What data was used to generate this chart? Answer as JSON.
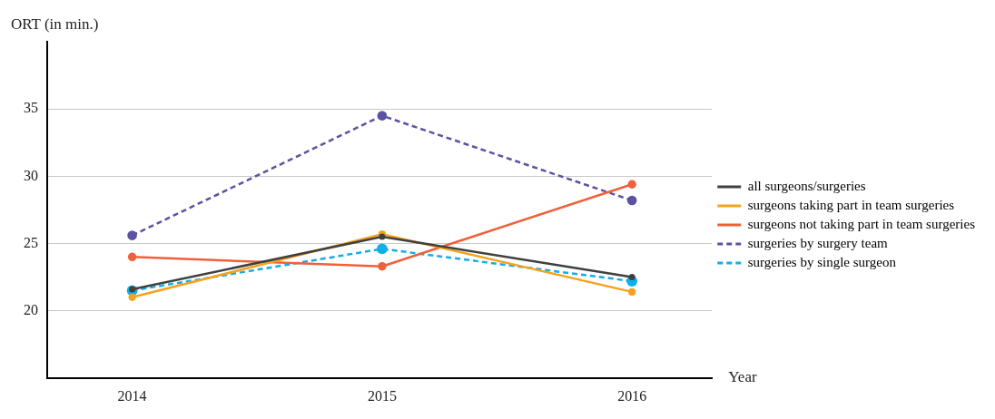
{
  "chart_data": {
    "type": "line",
    "xlabel": "Year",
    "ylabel": "ORT (in min.)",
    "x": [
      2014,
      2015,
      2016
    ],
    "xlim": [
      2013.66,
      2016.32
    ],
    "xticks": [
      2014,
      2015,
      2016
    ],
    "ylim": [
      15,
      40
    ],
    "yticks": [
      20,
      25,
      30,
      35
    ],
    "grid": "y",
    "legend": "right",
    "marker": "circle",
    "series": [
      {
        "name": "all surgeons/surgeries",
        "color": "#404040",
        "line_style": "solid",
        "values": [
          21.6,
          25.5,
          22.5
        ]
      },
      {
        "name": "surgeons taking part in team surgeries",
        "color": "#f5a21e",
        "line_style": "solid",
        "values": [
          21.0,
          25.7,
          21.4
        ]
      },
      {
        "name": "surgeons not taking part in team surgeries",
        "color": "#f0603a",
        "line_style": "solid",
        "values": [
          24.0,
          23.3,
          29.4
        ]
      },
      {
        "name": "surgeries by surgery team",
        "color": "#5b52a3",
        "line_style": "dashed",
        "values": [
          25.6,
          34.5,
          28.2
        ]
      },
      {
        "name": "surgeries by single surgeon",
        "color": "#12aee8",
        "line_style": "dashed",
        "values": [
          21.5,
          24.6,
          22.2
        ]
      }
    ]
  }
}
